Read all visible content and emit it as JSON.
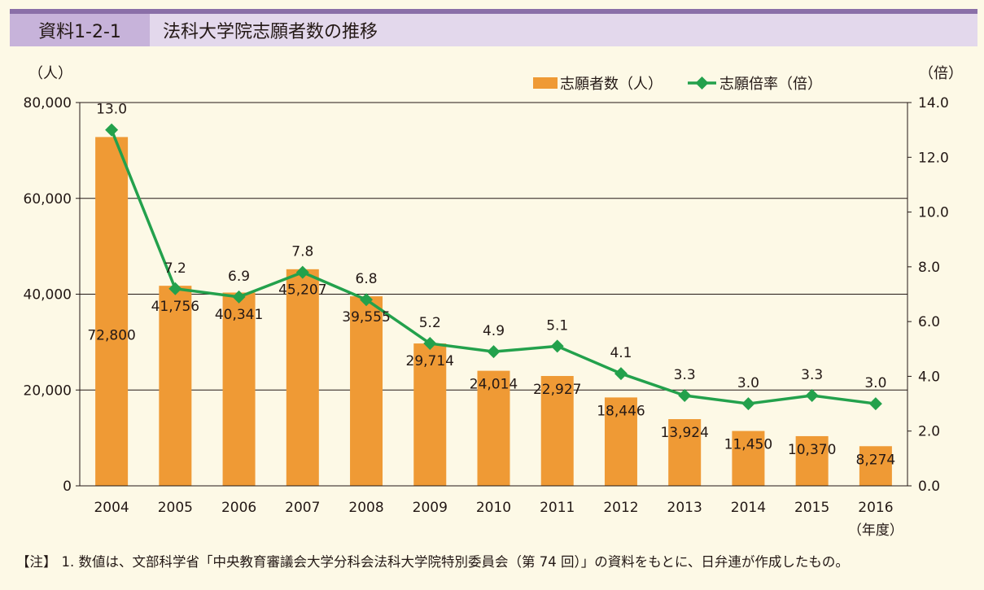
{
  "header": {
    "label": "資料1-2-1",
    "title": "法科大学院志願者数の推移"
  },
  "note": {
    "prefix": "【注】",
    "text": "1. 数値は、文部科学省「中央教育審議会大学分科会法科大学院特別委員会（第 74 回）」の資料をもとに、日弁連が作成したもの。"
  },
  "colors": {
    "bar": "#ef9a35",
    "line": "#23a14c",
    "header_band": "#e3d8ec",
    "header_label": "#c7b3da",
    "top_rule": "#8a6fa8",
    "background": "#fdf9e6"
  },
  "chart_data": {
    "type": "bar",
    "categories": [
      "2004",
      "2005",
      "2006",
      "2007",
      "2008",
      "2009",
      "2010",
      "2011",
      "2012",
      "2013",
      "2014",
      "2015",
      "2016"
    ],
    "x_unit": "（年度）",
    "series": [
      {
        "name": "志願者数（人）",
        "type": "bar",
        "axis": "left",
        "values": [
          72800,
          41756,
          40341,
          45207,
          39555,
          29714,
          24014,
          22927,
          18446,
          13924,
          11450,
          10370,
          8274
        ],
        "labels": [
          "72,800",
          "41,756",
          "40,341",
          "45,207",
          "39,555",
          "29,714",
          "24,014",
          "22,927",
          "18,446",
          "13,924",
          "11,450",
          "10,370",
          "8,274"
        ]
      },
      {
        "name": "志願倍率（倍）",
        "type": "line",
        "axis": "right",
        "values": [
          13.0,
          7.2,
          6.9,
          7.8,
          6.8,
          5.2,
          4.9,
          5.1,
          4.1,
          3.3,
          3.0,
          3.3,
          3.0
        ],
        "labels": [
          "13.0",
          "7.2",
          "6.9",
          "7.8",
          "6.8",
          "5.2",
          "4.9",
          "5.1",
          "4.1",
          "3.3",
          "3.0",
          "3.3",
          "3.0"
        ]
      }
    ],
    "y_left": {
      "unit": "（人）",
      "ylim": [
        0,
        80000
      ],
      "ticks": [
        0,
        20000,
        40000,
        60000,
        80000
      ],
      "tick_labels": [
        "0",
        "20,000",
        "40,000",
        "60,000",
        "80,000"
      ]
    },
    "y_right": {
      "unit": "（倍）",
      "ylim": [
        0,
        14
      ],
      "ticks": [
        0,
        2,
        4,
        6,
        8,
        10,
        12,
        14
      ],
      "tick_labels": [
        "0.0",
        "2.0",
        "4.0",
        "6.0",
        "8.0",
        "10.0",
        "12.0",
        "14.0"
      ]
    },
    "grid": "horizontal at left-axis ticks",
    "legend_position": "top-right"
  }
}
